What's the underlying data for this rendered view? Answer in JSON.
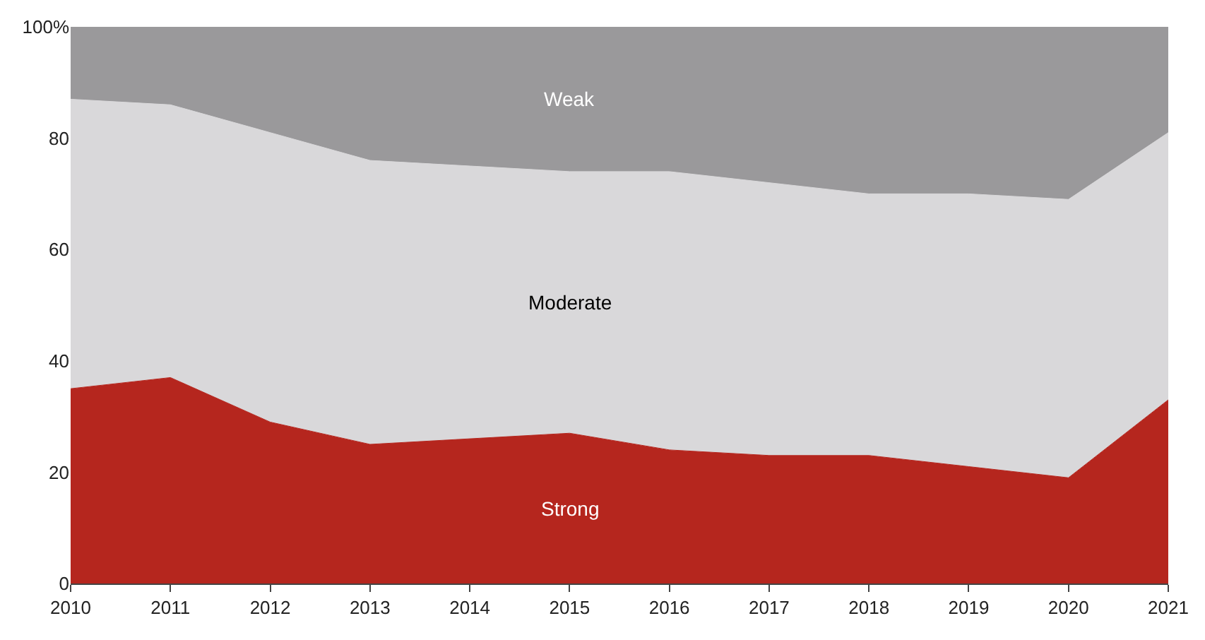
{
  "chart_data": {
    "type": "area",
    "stacked": true,
    "x": [
      2010,
      2011,
      2012,
      2013,
      2014,
      2015,
      2016,
      2017,
      2018,
      2019,
      2020,
      2021
    ],
    "series": [
      {
        "name": "Strong",
        "color": "#b5261e",
        "values": [
          35,
          37,
          29,
          25,
          26,
          27,
          24,
          23,
          23,
          21,
          19,
          33
        ]
      },
      {
        "name": "Moderate",
        "color": "#d9d8da",
        "values": [
          52,
          49,
          52,
          51,
          49,
          47,
          50,
          49,
          47,
          49,
          50,
          48
        ]
      },
      {
        "name": "Weak",
        "color": "#9a999b",
        "values": [
          13,
          14,
          19,
          24,
          25,
          26,
          26,
          28,
          30,
          30,
          31,
          19
        ]
      }
    ],
    "xlim": [
      2010,
      2021
    ],
    "xticks": [
      2010,
      2011,
      2012,
      2013,
      2014,
      2015,
      2016,
      2017,
      2018,
      2019,
      2020,
      2021
    ],
    "ylim": [
      0,
      100
    ],
    "yticks": [
      0,
      20,
      40,
      60,
      80,
      {
        "value": 100,
        "label": "100%"
      }
    ],
    "legend": false
  }
}
